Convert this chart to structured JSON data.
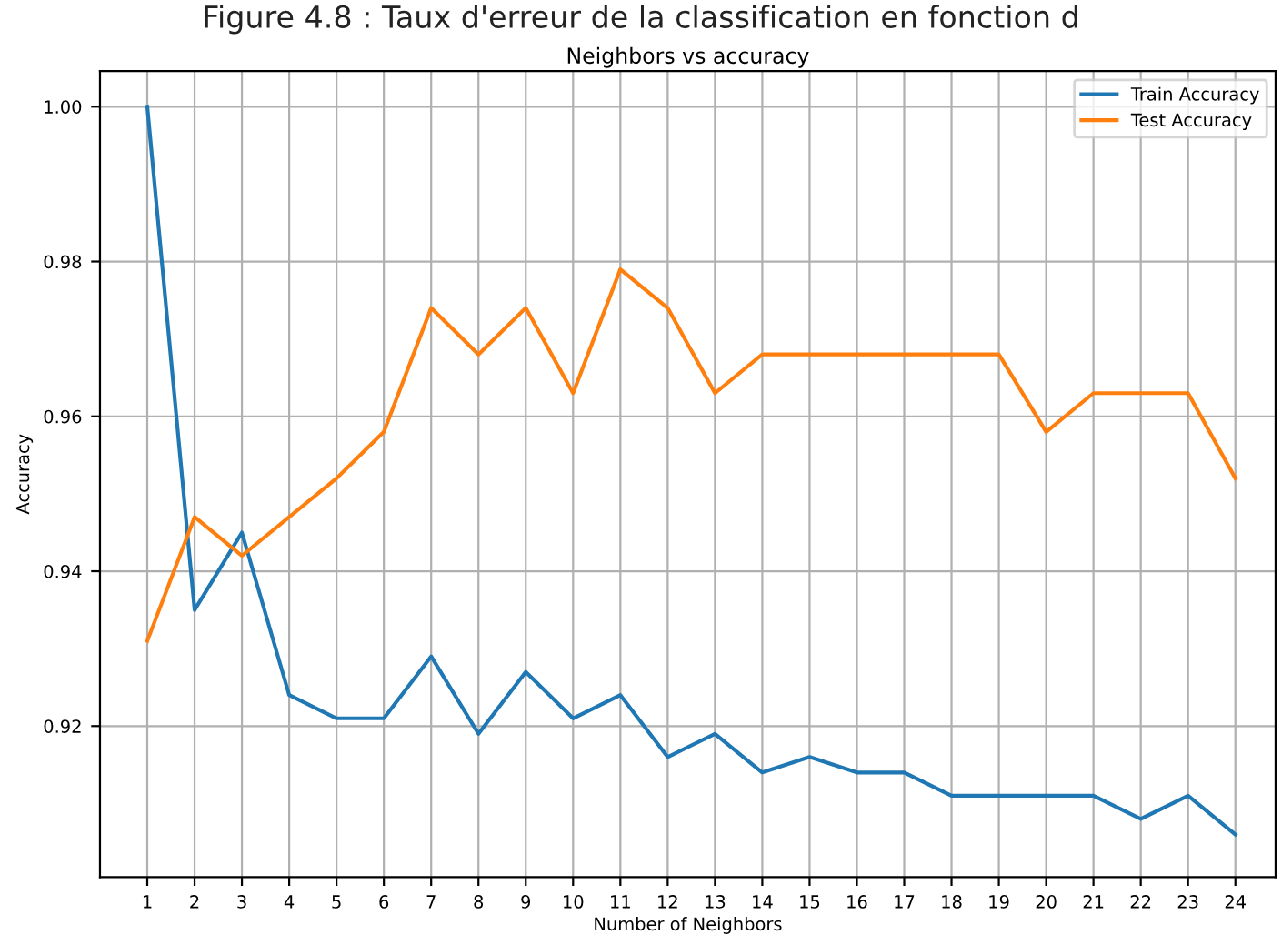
{
  "chart_data": {
    "type": "line",
    "title": "Neighbors vs accuracy",
    "xlabel": "Number of Neighbors",
    "ylabel": "Accuracy",
    "annotations": [
      "Figure 4.8 : Taux d'erreur de la classification en fonction d"
    ],
    "x": [
      1,
      2,
      3,
      4,
      5,
      6,
      7,
      8,
      9,
      10,
      11,
      12,
      13,
      14,
      15,
      16,
      17,
      18,
      19,
      20,
      21,
      22,
      23,
      24
    ],
    "series": [
      {
        "name": "Train Accuracy",
        "color": "#1f77b4",
        "values": [
          1.0,
          0.935,
          0.945,
          0.924,
          0.921,
          0.921,
          0.929,
          0.919,
          0.927,
          0.921,
          0.924,
          0.916,
          0.919,
          0.914,
          0.916,
          0.914,
          0.914,
          0.911,
          0.911,
          0.911,
          0.911,
          0.908,
          0.911,
          0.906
        ]
      },
      {
        "name": "Test Accuracy",
        "color": "#ff7f0e",
        "values": [
          0.931,
          0.947,
          0.942,
          0.947,
          0.952,
          0.958,
          0.974,
          0.968,
          0.974,
          0.963,
          0.979,
          0.974,
          0.963,
          0.968,
          0.968,
          0.968,
          0.968,
          0.968,
          0.968,
          0.958,
          0.963,
          0.963,
          0.963,
          0.952
        ]
      }
    ],
    "xlim": [
      0,
      24.85
    ],
    "ylim": [
      0.9005,
      1.0046
    ],
    "xticks": [
      1,
      2,
      3,
      4,
      5,
      6,
      7,
      8,
      9,
      10,
      11,
      12,
      13,
      14,
      15,
      16,
      17,
      18,
      19,
      20,
      21,
      22,
      23,
      24
    ],
    "yticks": [
      {
        "value": 0.92,
        "label": "0.92"
      },
      {
        "value": 0.94,
        "label": "0.94"
      },
      {
        "value": 0.96,
        "label": "0.96"
      },
      {
        "value": 0.98,
        "label": "0.98"
      },
      {
        "value": 1.0,
        "label": "1.00"
      }
    ],
    "grid": true,
    "legend": "top right"
  }
}
